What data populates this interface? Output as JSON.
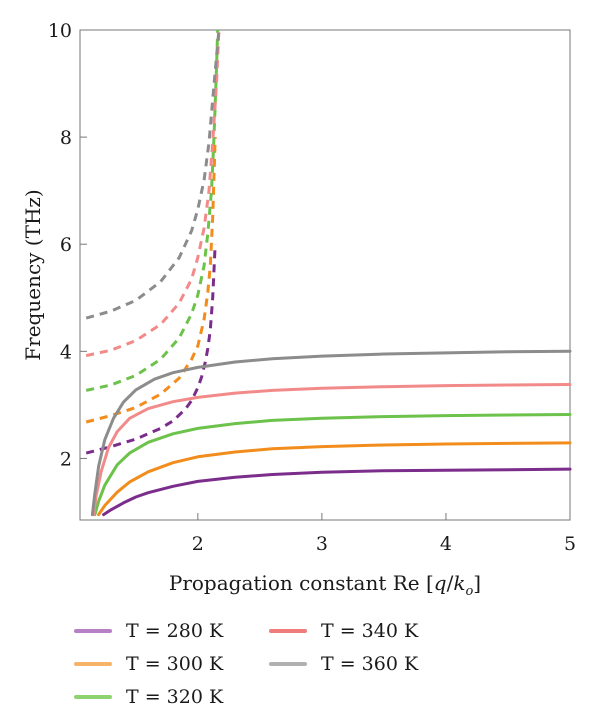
{
  "chart_data": {
    "type": "line",
    "xlabel": "Propagation constant Re [q/k_o]",
    "xlabel_parts": {
      "prefix": "Propagation constant Re [",
      "q": "q",
      "slash": "/",
      "k": "k",
      "sub": "o",
      "suffix": "]"
    },
    "ylabel": "Frequency (THz)",
    "xlim": [
      1.05,
      5.0
    ],
    "ylim": [
      0.85,
      10.0
    ],
    "xticks": [
      2,
      3,
      4,
      5
    ],
    "xtick_labels": [
      "2",
      "3",
      "4",
      "5"
    ],
    "yticks": [
      2,
      4,
      6,
      8,
      10
    ],
    "ytick_labels": [
      "2",
      "4",
      "6",
      "8",
      "10"
    ],
    "grid": false,
    "legend_position": "bottom",
    "series": [
      {
        "name": "T = 280 K",
        "color": "#7b2d8b",
        "legend_color": "#b77fc4",
        "solid": {
          "x": [
            1.24,
            1.3,
            1.4,
            1.5,
            1.6,
            1.8,
            2.0,
            2.3,
            2.6,
            3.0,
            3.5,
            4.0,
            4.5,
            5.0
          ],
          "y": [
            0.95,
            1.04,
            1.17,
            1.28,
            1.36,
            1.48,
            1.57,
            1.65,
            1.7,
            1.74,
            1.77,
            1.78,
            1.79,
            1.8
          ]
        },
        "dashed": {
          "x": [
            1.1,
            1.3,
            1.5,
            1.7,
            1.8,
            1.9,
            1.95,
            2.0,
            2.03,
            2.06,
            2.08,
            2.1,
            2.12,
            2.14
          ],
          "y": [
            2.1,
            2.22,
            2.36,
            2.56,
            2.7,
            2.92,
            3.08,
            3.32,
            3.52,
            3.8,
            4.05,
            4.4,
            5.0,
            6.0
          ]
        }
      },
      {
        "name": "T = 300 K",
        "color": "#f28c1c",
        "legend_color": "#f6b36a",
        "solid": {
          "x": [
            1.2,
            1.25,
            1.35,
            1.45,
            1.6,
            1.8,
            2.0,
            2.3,
            2.6,
            3.0,
            3.5,
            4.0,
            4.5,
            5.0
          ],
          "y": [
            0.95,
            1.12,
            1.37,
            1.56,
            1.75,
            1.92,
            2.03,
            2.12,
            2.18,
            2.22,
            2.25,
            2.27,
            2.28,
            2.29
          ]
        },
        "dashed": {
          "x": [
            1.1,
            1.3,
            1.5,
            1.7,
            1.85,
            1.95,
            2.0,
            2.05,
            2.08,
            2.1,
            2.12,
            2.14
          ],
          "y": [
            2.68,
            2.8,
            2.95,
            3.2,
            3.5,
            3.85,
            4.1,
            4.6,
            5.1,
            5.6,
            6.5,
            8.0
          ]
        }
      },
      {
        "name": "T = 320 K",
        "color": "#6cc24a",
        "legend_color": "#8ed36f",
        "solid": {
          "x": [
            1.17,
            1.2,
            1.25,
            1.35,
            1.45,
            1.6,
            1.8,
            2.0,
            2.3,
            2.6,
            3.0,
            3.5,
            4.0,
            4.5,
            5.0
          ],
          "y": [
            0.95,
            1.2,
            1.5,
            1.88,
            2.1,
            2.3,
            2.46,
            2.56,
            2.65,
            2.71,
            2.75,
            2.78,
            2.8,
            2.81,
            2.82
          ]
        },
        "dashed": {
          "x": [
            1.1,
            1.3,
            1.5,
            1.7,
            1.85,
            1.95,
            2.0,
            2.05,
            2.08,
            2.11,
            2.13,
            2.15,
            2.16
          ],
          "y": [
            3.27,
            3.37,
            3.55,
            3.85,
            4.25,
            4.7,
            5.05,
            5.6,
            6.2,
            7.0,
            8.0,
            9.3,
            10.0
          ]
        }
      },
      {
        "name": "T = 340 K",
        "color": "#f28a8a",
        "legend_color": "#ef7b7b",
        "solid": {
          "x": [
            1.16,
            1.18,
            1.22,
            1.28,
            1.35,
            1.45,
            1.6,
            1.8,
            2.0,
            2.3,
            2.6,
            3.0,
            3.5,
            4.0,
            4.5,
            5.0
          ],
          "y": [
            0.95,
            1.3,
            1.75,
            2.2,
            2.5,
            2.75,
            2.93,
            3.06,
            3.14,
            3.22,
            3.27,
            3.31,
            3.34,
            3.36,
            3.37,
            3.38
          ]
        },
        "dashed": {
          "x": [
            1.1,
            1.3,
            1.5,
            1.7,
            1.85,
            1.95,
            2.0,
            2.05,
            2.09,
            2.12,
            2.15,
            2.17
          ],
          "y": [
            3.92,
            4.02,
            4.2,
            4.5,
            4.9,
            5.35,
            5.75,
            6.3,
            7.0,
            7.9,
            9.0,
            10.0
          ]
        }
      },
      {
        "name": "T = 360 K",
        "color": "#8c8c8c",
        "legend_color": "#b0b0b0",
        "solid": {
          "x": [
            1.15,
            1.17,
            1.2,
            1.25,
            1.32,
            1.4,
            1.5,
            1.65,
            1.8,
            2.0,
            2.3,
            2.6,
            3.0,
            3.5,
            4.0,
            4.5,
            5.0
          ],
          "y": [
            0.95,
            1.35,
            1.85,
            2.35,
            2.75,
            3.05,
            3.28,
            3.48,
            3.6,
            3.7,
            3.8,
            3.86,
            3.91,
            3.95,
            3.97,
            3.99,
            4.0
          ]
        },
        "dashed": {
          "x": [
            1.1,
            1.3,
            1.5,
            1.7,
            1.85,
            1.95,
            2.0,
            2.05,
            2.09,
            2.12,
            2.15,
            2.17
          ],
          "y": [
            4.62,
            4.75,
            4.95,
            5.3,
            5.75,
            6.25,
            6.65,
            7.2,
            7.9,
            8.7,
            9.5,
            10.0
          ]
        }
      }
    ]
  }
}
